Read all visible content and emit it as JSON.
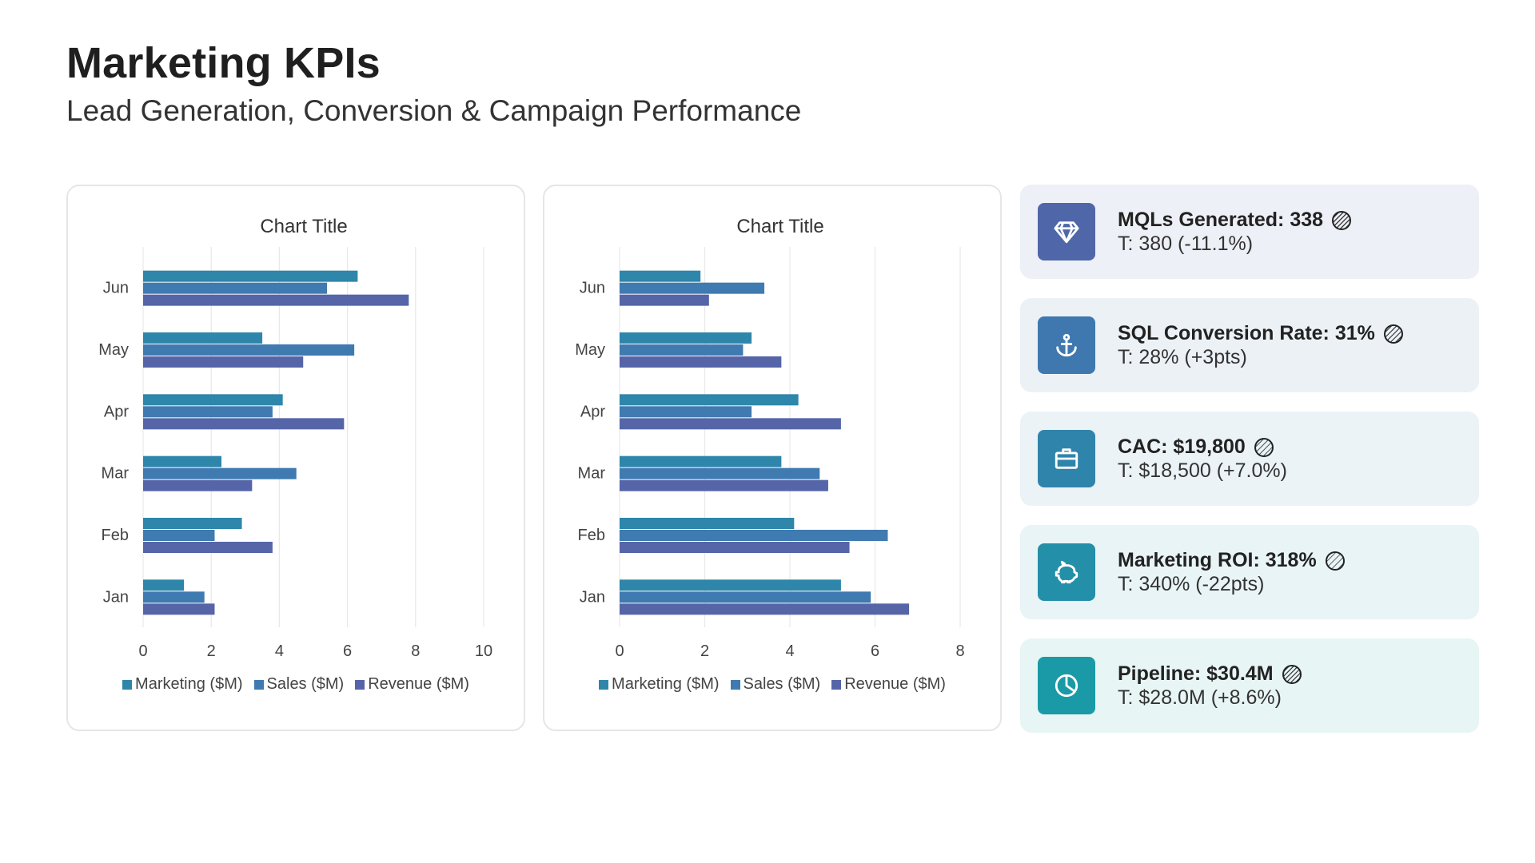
{
  "header": {
    "title": "Marketing KPIs",
    "subtitle": "Lead Generation, Conversion & Campaign Performance"
  },
  "colors": {
    "marketing": "#2E86AB",
    "sales": "#3F7AB0",
    "revenue": "#5565A8"
  },
  "chart_data": [
    {
      "type": "bar",
      "orientation": "horizontal",
      "title": "Chart Title",
      "categories": [
        "Jan",
        "Feb",
        "Mar",
        "Apr",
        "May",
        "Jun"
      ],
      "series": [
        {
          "name": "Marketing ($M)",
          "values": [
            1.2,
            2.9,
            2.3,
            4.1,
            3.5,
            6.3
          ]
        },
        {
          "name": "Sales ($M)",
          "values": [
            1.8,
            2.1,
            4.5,
            3.8,
            6.2,
            5.4
          ]
        },
        {
          "name": "Revenue ($M)",
          "values": [
            2.1,
            3.8,
            3.2,
            5.9,
            4.7,
            7.8
          ]
        }
      ],
      "xlim": [
        0,
        10
      ],
      "xticks": [
        "0",
        "2",
        "4",
        "6",
        "8",
        "10"
      ],
      "grid": true,
      "legend": "bottom"
    },
    {
      "type": "bar",
      "orientation": "horizontal",
      "title": "Chart Title",
      "categories": [
        "Jan",
        "Feb",
        "Mar",
        "Apr",
        "May",
        "Jun"
      ],
      "series": [
        {
          "name": "Marketing ($M)",
          "values": [
            5.2,
            4.1,
            3.8,
            4.2,
            3.1,
            1.9
          ]
        },
        {
          "name": "Sales ($M)",
          "values": [
            5.9,
            6.3,
            4.7,
            3.1,
            2.9,
            3.4
          ]
        },
        {
          "name": "Revenue ($M)",
          "values": [
            6.8,
            5.4,
            4.9,
            5.2,
            3.8,
            2.1
          ]
        }
      ],
      "xlim": [
        0,
        8
      ],
      "xticks": [
        "0",
        "2",
        "4",
        "6",
        "8"
      ],
      "grid": true,
      "legend": "bottom"
    }
  ],
  "kpis": [
    {
      "main": "MQLs Generated: 338",
      "sub": "T: 380 (-11.1%)",
      "icon": "diamond-icon",
      "icon_color": "#4F67A8",
      "bg": "#EEF0F7"
    },
    {
      "main": "SQL Conversion Rate: 31%",
      "sub": "T: 28% (+3pts)",
      "icon": "anchor-icon",
      "icon_color": "#3F78AE",
      "bg": "#ECF1F6"
    },
    {
      "main": "CAC: $19,800",
      "sub": "T: $18,500 (+7.0%)",
      "icon": "briefcase-icon",
      "icon_color": "#2F84AB",
      "bg": "#EBF3F6"
    },
    {
      "main": "Marketing ROI: 318%",
      "sub": "T: 340% (-22pts)",
      "icon": "piggy-bank-icon",
      "icon_color": "#248FA8",
      "bg": "#E9F4F6"
    },
    {
      "main": "Pipeline: $30.4M",
      "sub": "T: $28.0M (+8.6%)",
      "icon": "pie-chart-icon",
      "icon_color": "#1A9AA6",
      "bg": "#E8F5F5"
    }
  ]
}
